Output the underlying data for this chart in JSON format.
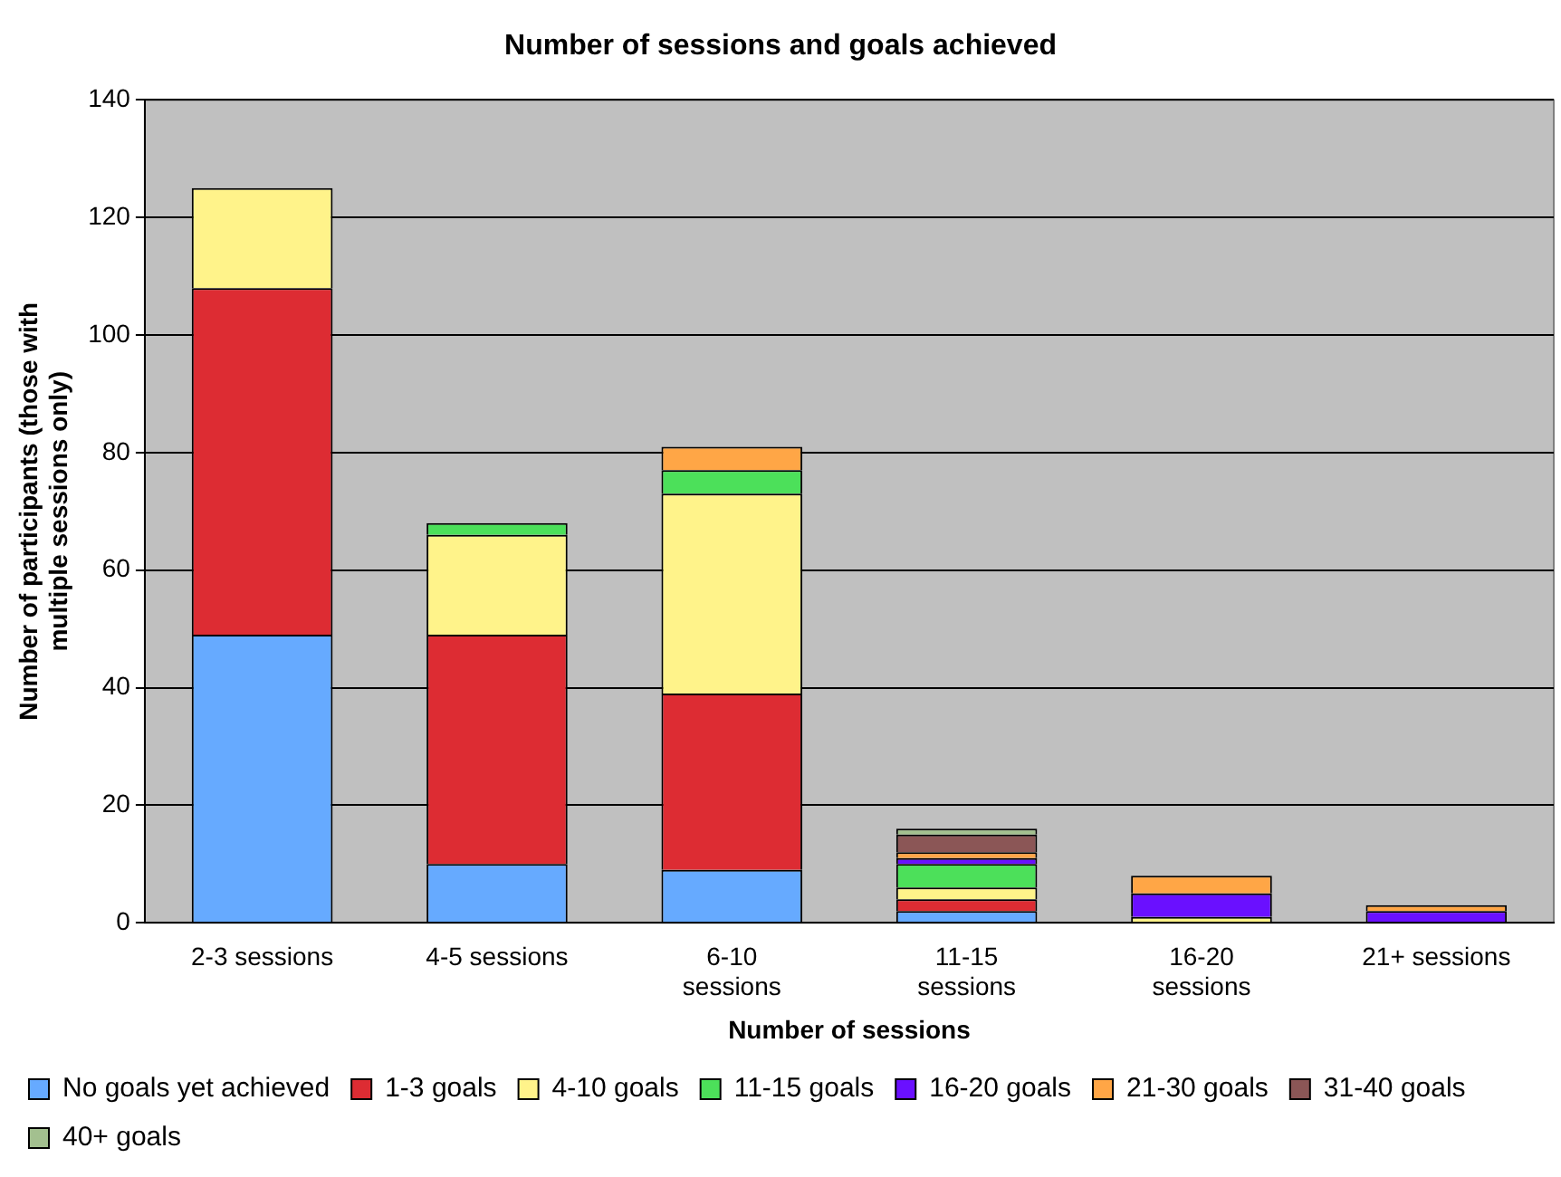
{
  "chart_data": {
    "type": "bar",
    "title": "Number of sessions and goals achieved",
    "xlabel": "Number of sessions",
    "ylabel": "Number of participants (those with multiple sessions only)",
    "categories": [
      "2-3 sessions",
      "4-5 sessions",
      "6-10 sessions",
      "11-15 sessions",
      "16-20 sessions",
      "21+ sessions"
    ],
    "stacked": true,
    "ylim": [
      0,
      140
    ],
    "yticks": [
      0,
      20,
      40,
      60,
      80,
      100,
      120,
      140
    ],
    "grid": "y",
    "legend": "bottom",
    "series": [
      {
        "name": "No goals yet achieved",
        "color": "#66aaff",
        "values": [
          49,
          10,
          9,
          2,
          0,
          0
        ]
      },
      {
        "name": "1-3 goals",
        "color": "#dd2c33",
        "values": [
          59,
          39,
          30,
          2,
          0,
          0
        ]
      },
      {
        "name": "4-10 goals",
        "color": "#fff38a",
        "values": [
          17,
          17,
          34,
          2,
          1,
          0
        ]
      },
      {
        "name": "11-15 goals",
        "color": "#4ce05a",
        "values": [
          0,
          2,
          4,
          4,
          0,
          0
        ]
      },
      {
        "name": "16-20 goals",
        "color": "#6a10ff",
        "values": [
          0,
          0,
          0,
          1,
          4,
          2
        ]
      },
      {
        "name": "21-30 goals",
        "color": "#ffa646",
        "values": [
          0,
          0,
          4,
          1,
          3,
          1
        ]
      },
      {
        "name": "31-40 goals",
        "color": "#8b5656",
        "values": [
          0,
          0,
          0,
          3,
          0,
          0
        ]
      },
      {
        "name": "40+ goals",
        "color": "#a3c08f",
        "values": [
          0,
          0,
          0,
          1,
          0,
          0
        ]
      }
    ]
  }
}
